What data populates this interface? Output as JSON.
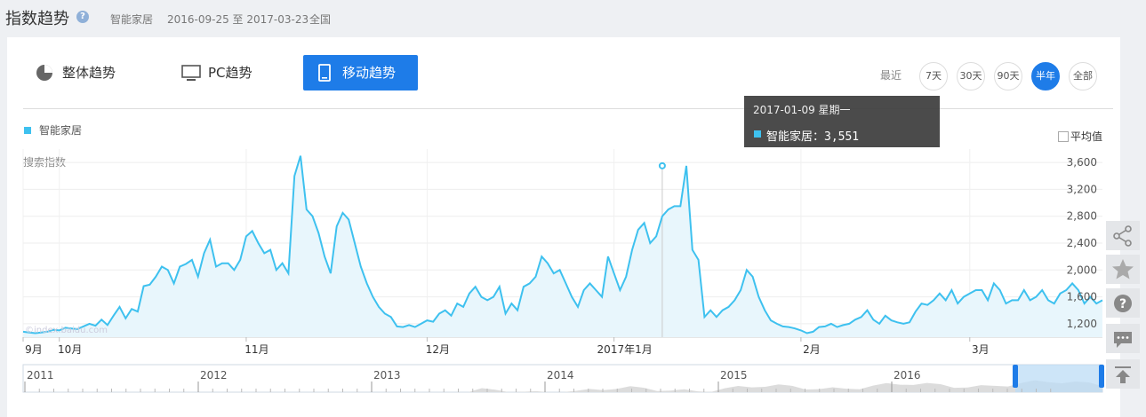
{
  "header": {
    "title": "指数趋势",
    "keyword": "智能家居",
    "date_range": "2016-09-25 至 2017-03-23",
    "region": "全国"
  },
  "tabs": [
    {
      "label": "整体趋势",
      "icon": "pie-chart-icon"
    },
    {
      "label": "PC趋势",
      "icon": "monitor-icon"
    },
    {
      "label": "移动趋势",
      "icon": "mobile-icon",
      "active": true
    }
  ],
  "range": {
    "label": "最近",
    "options": [
      "7天",
      "30天",
      "90天",
      "半年",
      "全部"
    ],
    "selected": "半年"
  },
  "legend": {
    "series_name": "智能家居",
    "color": "#3ec1ef"
  },
  "avg_label": "平均值",
  "y_axis_label": "搜索指数",
  "watermark": "©index.baidu.com",
  "tooltip": {
    "date": "2017-01-09 星期一",
    "text": "智能家居：3,551"
  },
  "navigator": {
    "years": [
      "2011",
      "2012",
      "2013",
      "2014",
      "2015",
      "2016"
    ]
  },
  "chart_data": {
    "type": "area",
    "series_name": "智能家居",
    "x_labels": [
      "9月",
      "10月",
      "11月",
      "12月",
      "2017年1月",
      "2月",
      "3月"
    ],
    "y_ticks": [
      1200,
      1600,
      2000,
      2400,
      2800,
      3200,
      3600
    ],
    "ylim": [
      1000,
      3800
    ],
    "start_date": "2016-09-25",
    "end_date": "2017-03-23",
    "highlight": {
      "date": "2017-01-09",
      "value": 3551
    },
    "values": [
      1080,
      1070,
      1060,
      1070,
      1080,
      1110,
      1100,
      1140,
      1130,
      1120,
      1160,
      1200,
      1170,
      1260,
      1180,
      1320,
      1450,
      1280,
      1420,
      1380,
      1760,
      1780,
      1900,
      2050,
      2000,
      1800,
      2050,
      2090,
      2150,
      1900,
      2250,
      2450,
      2050,
      2100,
      2100,
      2000,
      2150,
      2500,
      2580,
      2400,
      2250,
      2300,
      2000,
      2100,
      1950,
      3400,
      3700,
      2900,
      2800,
      2550,
      2200,
      1950,
      2650,
      2850,
      2750,
      2400,
      2050,
      1800,
      1600,
      1450,
      1350,
      1300,
      1160,
      1150,
      1180,
      1150,
      1200,
      1250,
      1230,
      1350,
      1400,
      1320,
      1500,
      1450,
      1650,
      1750,
      1600,
      1550,
      1600,
      1750,
      1350,
      1500,
      1400,
      1750,
      1800,
      1900,
      2200,
      2100,
      1950,
      2000,
      1800,
      1600,
      1450,
      1700,
      1800,
      1700,
      1600,
      2200,
      1950,
      1700,
      1900,
      2300,
      2600,
      2700,
      2400,
      2500,
      2800,
      2900,
      2950,
      2950,
      3551,
      2300,
      2150,
      1300,
      1400,
      1300,
      1400,
      1450,
      1550,
      1700,
      2000,
      1900,
      1600,
      1400,
      1250,
      1200,
      1160,
      1150,
      1130,
      1100,
      1060,
      1080,
      1150,
      1160,
      1200,
      1150,
      1180,
      1200,
      1260,
      1300,
      1400,
      1260,
      1200,
      1320,
      1250,
      1220,
      1200,
      1220,
      1380,
      1500,
      1480,
      1550,
      1650,
      1550,
      1700,
      1500,
      1600,
      1650,
      1700,
      1700,
      1550,
      1800,
      1700,
      1500,
      1550,
      1550,
      1700,
      1550,
      1600,
      1700,
      1550,
      1500,
      1650,
      1700,
      1800,
      1700,
      1500,
      1600,
      1500,
      1550
    ]
  }
}
